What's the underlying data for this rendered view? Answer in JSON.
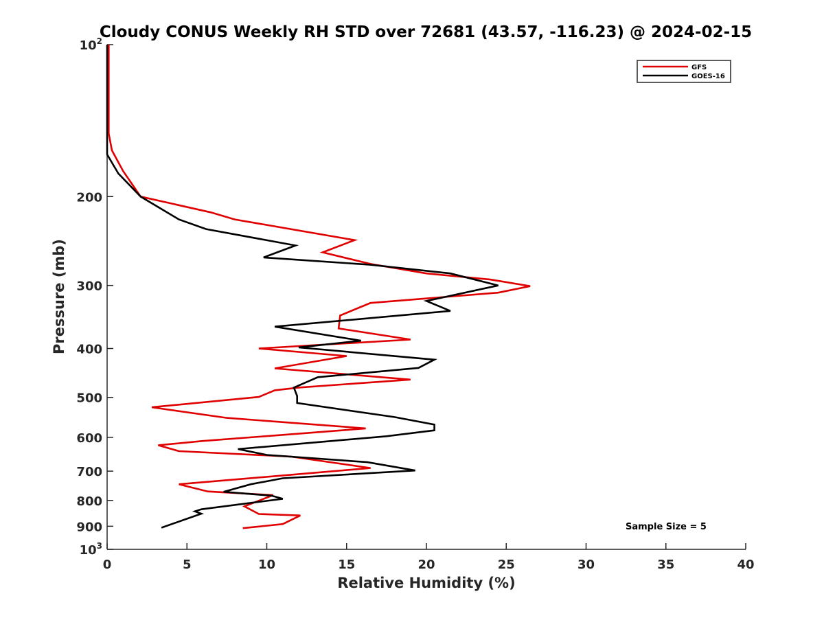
{
  "chart_data": {
    "type": "line",
    "title": "Cloudy CONUS Weekly RH STD over 72681 (43.57, -116.23) @ 2024-02-15",
    "xlabel": "Relative Humidity (%)",
    "ylabel": "Pressure (mb)",
    "xlim": [
      0,
      40
    ],
    "ylim": [
      100,
      1000
    ],
    "y_scale": "log",
    "y_reversed": true,
    "x_ticks": [
      0,
      5,
      10,
      15,
      20,
      25,
      30,
      35,
      40
    ],
    "x_tick_labels": [
      "0",
      "5",
      "10",
      "15",
      "20",
      "25",
      "30",
      "35",
      "40"
    ],
    "y_ticks": [
      100,
      200,
      300,
      400,
      500,
      600,
      700,
      800,
      900,
      1000
    ],
    "y_tick_labels": [
      {
        "base": "10",
        "exp": "2"
      },
      {
        "base": "200",
        "exp": ""
      },
      {
        "base": "300",
        "exp": ""
      },
      {
        "base": "400",
        "exp": ""
      },
      {
        "base": "500",
        "exp": ""
      },
      {
        "base": "600",
        "exp": ""
      },
      {
        "base": "700",
        "exp": ""
      },
      {
        "base": "800",
        "exp": ""
      },
      {
        "base": "900",
        "exp": ""
      },
      {
        "base": "10",
        "exp": "3"
      }
    ],
    "legend_position": "top-right",
    "annotation": "Sample Size = 5",
    "series": [
      {
        "name": "GFS",
        "color": "#e00000",
        "points": [
          [
            0.1,
            100
          ],
          [
            0.1,
            150
          ],
          [
            0.3,
            162
          ],
          [
            1.0,
            178
          ],
          [
            2.1,
            200
          ],
          [
            6.5,
            215
          ],
          [
            8.0,
            222
          ],
          [
            15.5,
            244
          ],
          [
            13.5,
            258
          ],
          [
            16.5,
            272
          ],
          [
            20.0,
            284
          ],
          [
            24.0,
            292
          ],
          [
            26.5,
            301
          ],
          [
            24.5,
            310
          ],
          [
            16.5,
            325
          ],
          [
            14.6,
            344
          ],
          [
            14.5,
            365
          ],
          [
            19.0,
            384
          ],
          [
            9.5,
            400
          ],
          [
            15.0,
            414
          ],
          [
            10.5,
            438
          ],
          [
            19.0,
            461
          ],
          [
            12.0,
            478
          ],
          [
            10.5,
            484
          ],
          [
            9.5,
            499
          ],
          [
            2.8,
            523
          ],
          [
            7.5,
            549
          ],
          [
            16.2,
            576
          ],
          [
            12.0,
            590
          ],
          [
            6.0,
            610
          ],
          [
            3.2,
            622
          ],
          [
            4.5,
            639
          ],
          [
            11.5,
            655
          ],
          [
            16.5,
            690
          ],
          [
            4.5,
            743
          ],
          [
            6.3,
            768
          ],
          [
            10.4,
            781
          ],
          [
            8.6,
            822
          ],
          [
            9.5,
            851
          ],
          [
            12.1,
            857
          ],
          [
            11.0,
            891
          ],
          [
            8.5,
            908
          ]
        ]
      },
      {
        "name": "GOES-16",
        "color": "#000000",
        "points": [
          [
            0.0,
            100
          ],
          [
            0.0,
            165
          ],
          [
            0.7,
            180
          ],
          [
            2.1,
            200
          ],
          [
            4.5,
            222
          ],
          [
            6.2,
            232
          ],
          [
            11.8,
            250
          ],
          [
            9.8,
            264
          ],
          [
            16.5,
            273
          ],
          [
            21.5,
            284
          ],
          [
            24.5,
            300
          ],
          [
            20.0,
            322
          ],
          [
            21.5,
            337
          ],
          [
            10.5,
            362
          ],
          [
            15.9,
            386
          ],
          [
            12.0,
            398
          ],
          [
            20.5,
            421
          ],
          [
            19.5,
            437
          ],
          [
            13.2,
            456
          ],
          [
            11.7,
            478
          ],
          [
            11.9,
            497
          ],
          [
            11.9,
            513
          ],
          [
            18.0,
            547
          ],
          [
            20.5,
            566
          ],
          [
            20.5,
            581
          ],
          [
            17.5,
            597
          ],
          [
            8.2,
            633
          ],
          [
            10.0,
            650
          ],
          [
            16.3,
            672
          ],
          [
            19.3,
            698
          ],
          [
            11.0,
            723
          ],
          [
            9.0,
            743
          ],
          [
            7.3,
            769
          ],
          [
            10.3,
            783
          ],
          [
            11.0,
            794
          ],
          [
            5.9,
            833
          ],
          [
            5.5,
            841
          ],
          [
            5.9,
            850
          ],
          [
            3.4,
            906
          ]
        ]
      }
    ]
  }
}
